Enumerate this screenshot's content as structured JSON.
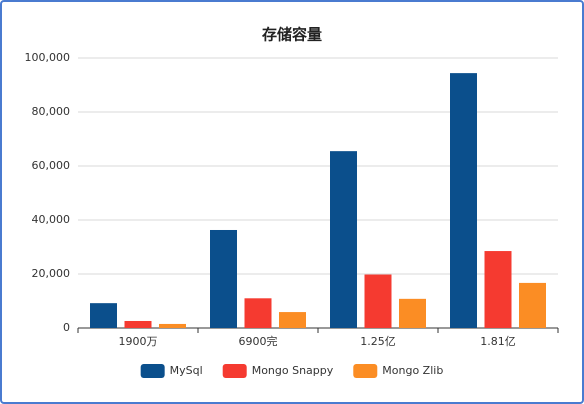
{
  "chart_data": {
    "type": "bar",
    "title": "存储容量",
    "categories": [
      "1900万",
      "6900完",
      "1.25亿",
      "1.81亿"
    ],
    "series": [
      {
        "name": "MySql",
        "color": "#0b4f8c",
        "values": [
          9200,
          36300,
          65500,
          94400
        ]
      },
      {
        "name": "Mongo Snappy",
        "color": "#f53a30",
        "values": [
          2600,
          11000,
          19800,
          28500
        ]
      },
      {
        "name": "Mongo Zlib",
        "color": "#fb8d24",
        "values": [
          1500,
          5900,
          10800,
          16700
        ]
      }
    ],
    "ylim": [
      0,
      100000
    ],
    "yticks": [
      0,
      {
        "value": 20000,
        "label": "20,000"
      },
      {
        "value": 40000,
        "label": "40,000"
      },
      {
        "value": 60000,
        "label": "60,000"
      },
      {
        "value": 80000,
        "label": "80,000"
      },
      {
        "value": 100000,
        "label": "100,000"
      }
    ],
    "grid": true,
    "legend": "bottom"
  }
}
